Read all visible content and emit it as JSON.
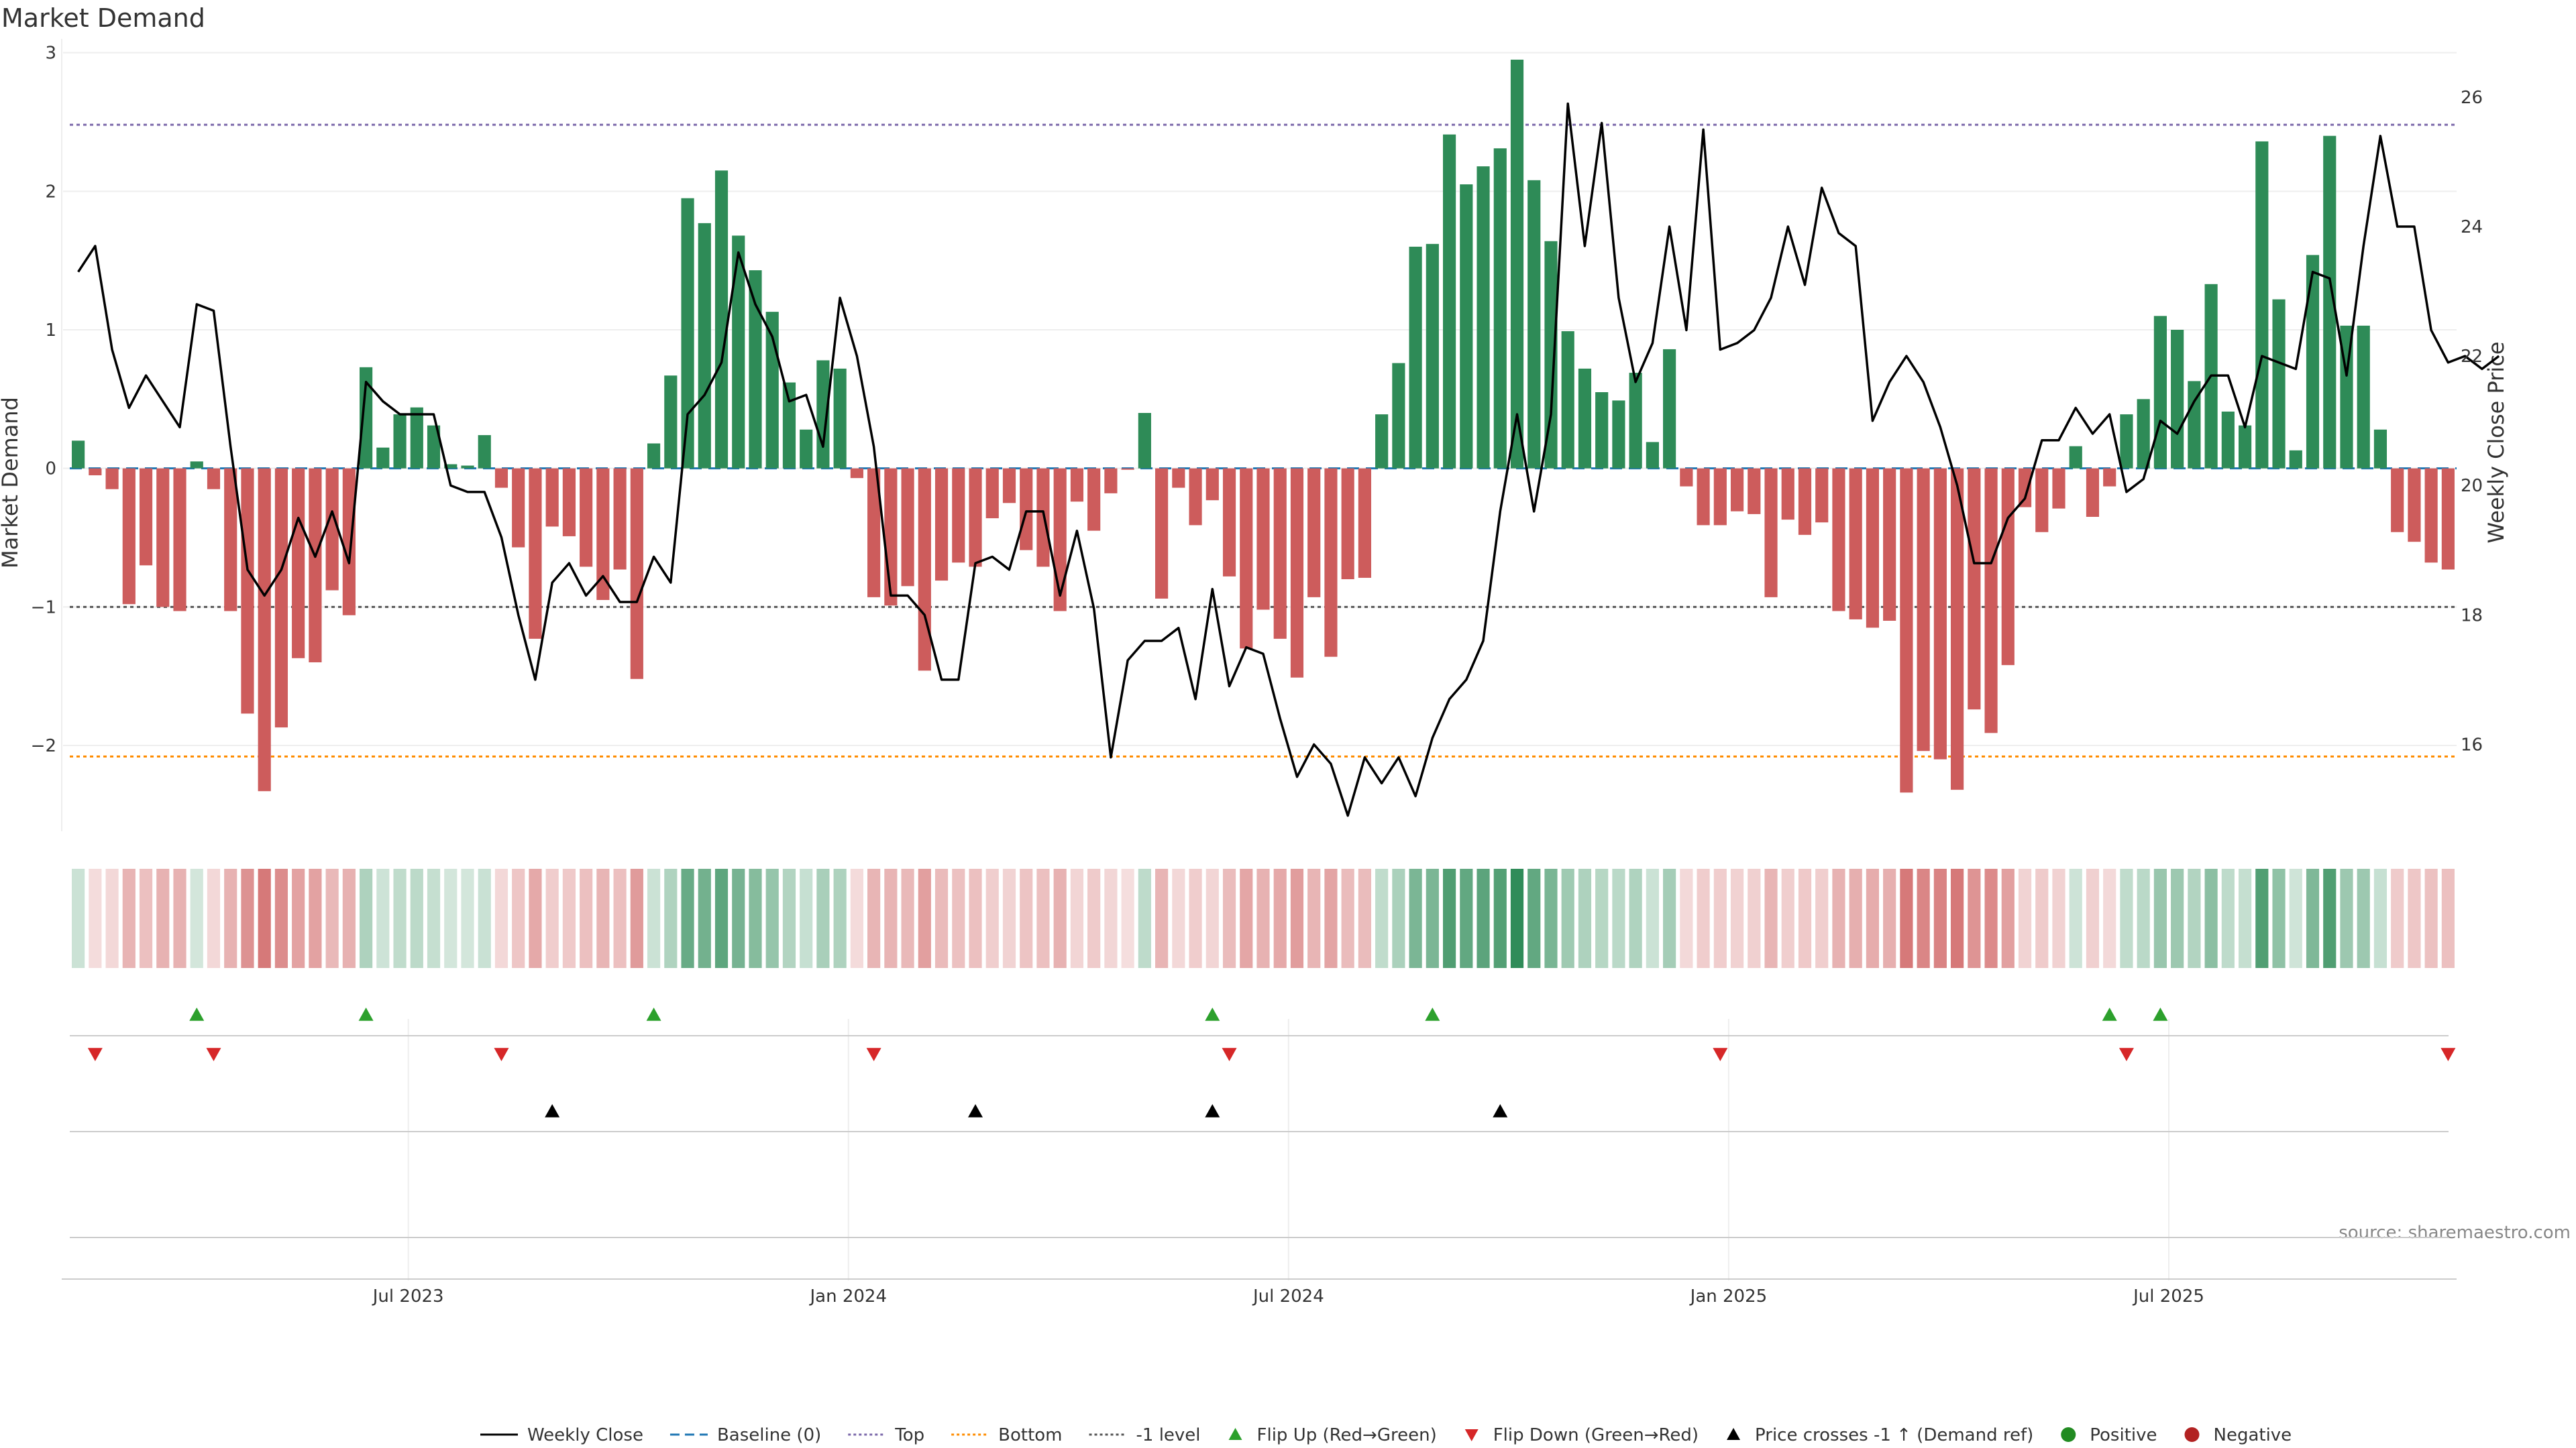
{
  "chart_data": {
    "type": "bar",
    "title": "Market Demand",
    "ylabel": "Market Demand",
    "y2label": "Weekly Close Price",
    "ylim": [
      -2.6,
      3.1
    ],
    "y2lim": [
      14.7,
      26.9
    ],
    "y_ticks": [
      {
        "value": 3,
        "label": "3"
      },
      {
        "value": 2,
        "label": "2"
      },
      {
        "value": 1,
        "label": "1"
      },
      {
        "value": 0,
        "label": "0"
      },
      {
        "value": -1,
        "label": "−1"
      },
      {
        "value": -2,
        "label": "−2"
      }
    ],
    "y2_ticks": [
      {
        "value": 26,
        "label": "26"
      },
      {
        "value": 24,
        "label": "24"
      },
      {
        "value": 22,
        "label": "22"
      },
      {
        "value": 20,
        "label": "20"
      },
      {
        "value": 18,
        "label": "18"
      },
      {
        "value": 16,
        "label": "16"
      }
    ],
    "x_ticks": [
      {
        "week": 20,
        "label": "Jul 2023"
      },
      {
        "week": 46,
        "label": "Jan 2024"
      },
      {
        "week": 72,
        "label": "Jul 2024"
      },
      {
        "week": 98,
        "label": "Jan 2025"
      },
      {
        "week": 124,
        "label": "Jul 2025"
      }
    ],
    "reference_lines": {
      "top": 2.48,
      "bottom": -2.08,
      "minus_one": -1.0,
      "baseline": 0
    },
    "colors": {
      "positive": "#2e8b57",
      "negative": "#cd5c5c",
      "close": "#000000",
      "baseline": "#1f77b4",
      "top": "#7b68aa",
      "bottom": "#ff8c00",
      "minus_one": "#555555",
      "flip_up": "#2ca02c",
      "flip_down": "#d62728",
      "cross": "#000000",
      "positive_dot": "#228b22",
      "negative_dot": "#b22222"
    },
    "demand": [
      0.2,
      -0.05,
      -0.15,
      -0.98,
      -0.7,
      -1.0,
      -1.03,
      0.05,
      -0.15,
      -1.03,
      -1.77,
      -2.33,
      -1.87,
      -1.37,
      -1.4,
      -0.88,
      -1.06,
      0.73,
      0.15,
      0.39,
      0.44,
      0.31,
      0.03,
      0.02,
      0.24,
      -0.14,
      -0.57,
      -1.23,
      -0.42,
      -0.49,
      -0.71,
      -0.95,
      -0.73,
      -1.52,
      0.18,
      0.67,
      1.95,
      1.77,
      2.15,
      1.68,
      1.43,
      1.13,
      0.62,
      0.28,
      0.78,
      0.72,
      -0.07,
      -0.93,
      -0.99,
      -0.85,
      -1.46,
      -0.81,
      -0.68,
      -0.71,
      -0.36,
      -0.25,
      -0.59,
      -0.71,
      -1.03,
      -0.24,
      -0.45,
      -0.18,
      -0.01,
      0.4,
      -0.94,
      -0.14,
      -0.41,
      -0.23,
      -0.78,
      -1.3,
      -1.02,
      -1.23,
      -1.51,
      -0.93,
      -1.36,
      -0.8,
      -0.79,
      0.39,
      0.76,
      1.6,
      1.62,
      2.41,
      2.05,
      2.18,
      2.31,
      2.95,
      2.08,
      1.64,
      0.99,
      0.72,
      0.55,
      0.49,
      0.69,
      0.19,
      0.86,
      -0.13,
      -0.41,
      -0.41,
      -0.31,
      -0.33,
      -0.93,
      -0.37,
      -0.48,
      -0.39,
      -1.03,
      -1.09,
      -1.15,
      -1.1,
      -2.34,
      -2.04,
      -2.1,
      -2.32,
      -1.74,
      -1.91,
      -1.42,
      -0.28,
      -0.46,
      -0.29,
      0.16,
      -0.35,
      -0.13,
      0.39,
      0.5,
      1.1,
      1.0,
      0.63,
      1.33,
      0.41,
      0.31,
      2.36,
      1.22,
      0.13,
      1.54,
      2.4,
      1.03,
      1.03,
      0.28,
      -0.46,
      -0.53,
      -0.68,
      -0.73
    ],
    "close": [
      23.3,
      23.7,
      22.1,
      21.2,
      21.7,
      21.3,
      20.9,
      22.8,
      22.7,
      20.6,
      18.7,
      18.3,
      18.7,
      19.5,
      18.9,
      19.6,
      18.8,
      21.6,
      21.3,
      21.1,
      21.1,
      21.1,
      20.0,
      19.9,
      19.9,
      19.2,
      18.0,
      17.0,
      18.5,
      18.8,
      18.3,
      18.6,
      18.2,
      18.2,
      18.9,
      18.5,
      21.1,
      21.4,
      21.9,
      23.6,
      22.8,
      22.3,
      21.3,
      21.4,
      20.6,
      22.9,
      22.0,
      20.6,
      18.3,
      18.3,
      18.0,
      17.0,
      17.0,
      18.8,
      18.9,
      18.7,
      19.6,
      19.6,
      18.3,
      19.3,
      18.1,
      15.8,
      17.3,
      17.6,
      17.6,
      17.8,
      16.7,
      18.4,
      16.9,
      17.5,
      17.4,
      16.4,
      15.5,
      16.0,
      15.7,
      14.9,
      15.8,
      15.4,
      15.8,
      15.2,
      16.1,
      16.7,
      17.0,
      17.6,
      19.6,
      21.1,
      19.6,
      21.1,
      25.9,
      23.7,
      25.6,
      22.9,
      21.6,
      22.2,
      24.0,
      22.4,
      25.5,
      22.1,
      22.2,
      22.4,
      22.9,
      24.0,
      23.1,
      24.6,
      23.9,
      23.7,
      21.0,
      21.6,
      22.0,
      21.6,
      20.9,
      20.0,
      18.8,
      18.8,
      19.5,
      19.8,
      20.7,
      20.7,
      21.2,
      20.8,
      21.1,
      19.9,
      20.1,
      21.0,
      20.8,
      21.3,
      21.7,
      21.7,
      20.9,
      22.0,
      21.9,
      21.8,
      23.3,
      23.2,
      21.7,
      23.7,
      25.4,
      24.0,
      24.0,
      22.4,
      21.9,
      22.0,
      21.8,
      22.0
    ],
    "flip_up_weeks": [
      7,
      17,
      34,
      67,
      80,
      120,
      123
    ],
    "flip_down_weeks": [
      1,
      8,
      25,
      47,
      68,
      97,
      121,
      140
    ],
    "price_cross_weeks": [
      28,
      53,
      67,
      84
    ],
    "legend": [
      {
        "key": "close",
        "label": "Weekly Close"
      },
      {
        "key": "baseline",
        "label": "Baseline (0)"
      },
      {
        "key": "top",
        "label": "Top"
      },
      {
        "key": "bottom",
        "label": "Bottom"
      },
      {
        "key": "minus_one",
        "label": "-1 level"
      },
      {
        "key": "flip_up",
        "label": "Flip Up (Red→Green)"
      },
      {
        "key": "flip_down",
        "label": "Flip Down (Green→Red)"
      },
      {
        "key": "cross",
        "label": "Price crosses -1 ↑ (Demand ref)"
      },
      {
        "key": "positive_dot",
        "label": "Positive"
      },
      {
        "key": "negative_dot",
        "label": "Negative"
      }
    ],
    "source": "source: sharemaestro.com"
  }
}
